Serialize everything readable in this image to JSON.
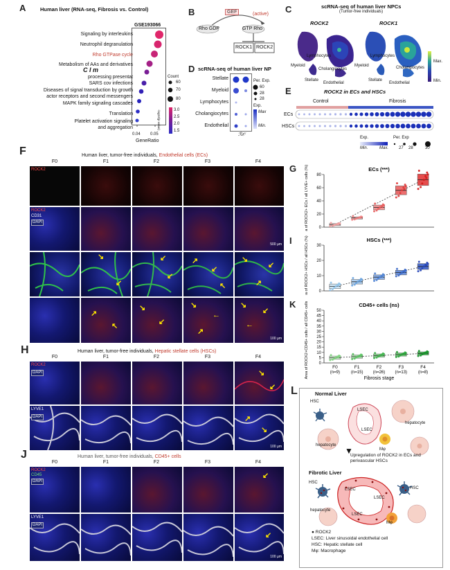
{
  "panel_labels": {
    "A": "A",
    "B": "B",
    "C": "C",
    "D": "D",
    "E": "E",
    "F": "F",
    "G": "G",
    "H": "H",
    "I": "I",
    "J": "J",
    "K": "K",
    "L": "L"
  },
  "panelA": {
    "title": "Human liver (RNA-seq, Fibrosis vs. Control)",
    "dataset": "GSE193066",
    "xlabel": "GeneRatio",
    "xticks": [
      "0.04",
      "0.05"
    ],
    "count_legend_title": "Count",
    "count_legend": [
      "60",
      "70",
      "80"
    ],
    "color_legend_title": "-log10(p value)",
    "color_legend": [
      "3.0",
      "2.5",
      "2.0",
      "1.5"
    ],
    "cim_label": "C I m",
    "terms": [
      "Signaling by interleukins",
      "Neutrophil degranulation",
      "Rho GTPase cycle",
      "Metabolism of AAs and derivatives",
      "processing presentat",
      "SARS cov infections",
      "Diseases of signal transduction by growth",
      "actor receptors and second messengers",
      "MAPK family signaling cascades",
      "Translation",
      "Platelet activation signaling",
      "and aggregation"
    ]
  },
  "panelB": {
    "gef": "GEF",
    "active": "(active)",
    "rhogdp": "Rho GDP",
    "gtprho": "GTP Rho",
    "rock1": "ROCK1",
    "rock2": "ROCK2"
  },
  "panelC": {
    "title": "scRNA-seq of human liver NPCs",
    "subtitle": "(Tumor-free individuals)",
    "left_gene": "ROCK2",
    "right_gene": "ROCK1",
    "labels": [
      "Myeloid",
      "Lymphocytes",
      "Cholangiocytes",
      "Stellate",
      "Endothelial"
    ],
    "scale_max": "Max.",
    "scale_min": "Min."
  },
  "panelD": {
    "title": "scRNA-seq of human liver NP",
    "rows": [
      "Stellate",
      "Myeloid",
      "Lymphocytes",
      "Cholangiocytes",
      "Endothelial"
    ],
    "pct_title": "Per. Exp.",
    "pct": [
      "60",
      "28",
      "28"
    ],
    "exp_title": "Exp.",
    "exp_max": "Max",
    "exp_min": "Min."
  },
  "panelE": {
    "title": "ROCK2 in ECs and HSCs",
    "control": "Control",
    "fibrosis": "Fibrosis",
    "rows": [
      "ECs",
      "HSCs"
    ],
    "exp": "Exp.",
    "per_exp": "Per. Exp",
    "min": "Min.",
    "max": "Max.",
    "sizes": [
      "27",
      "28",
      "30"
    ]
  },
  "panelF": {
    "title_prefix": "Human liver, tumor-free individuals, ",
    "title_highlight": "Endothelial cells (ECs)",
    "stages": [
      "F0",
      "F1",
      "F2",
      "F3",
      "F4"
    ],
    "rock2": "ROCK2",
    "cd31": "CD31",
    "dapi": "DAPI",
    "scale_top": "500 µm",
    "scale_bottom": "100 µm"
  },
  "panelH": {
    "title_prefix": "Human liver, tumor-free individuals, ",
    "title_highlight": "Hepatic stellate cells (HSCs)",
    "stages": [
      "F0",
      "F1",
      "F2",
      "F3",
      "F4"
    ],
    "rock2": "ROCK2",
    "dapi": "DAPI",
    "lyve1": "LYVE1",
    "scale": "100 µm"
  },
  "panelJ": {
    "title_prefix": "Human liver, tumor-free individuals, ",
    "title_highlight": "CD45+ cells",
    "stages": [
      "F0",
      "F1",
      "F2",
      "F3",
      "F4"
    ],
    "rock2": "ROCK2",
    "cd45": "CD45",
    "dapi": "DAPI",
    "lyve1": "LYVE1",
    "scale": "100 µm"
  },
  "chart_data": [
    {
      "type": "scatter",
      "panel": "G",
      "title": "ECs (***)",
      "ylabel": "Area of ROCK2+ ECs / all LYVE+ cells (%)",
      "ylim": [
        0,
        80
      ],
      "yticks": [
        0,
        20,
        40,
        60,
        80
      ],
      "categories": [
        "F0",
        "F1",
        "F2",
        "F3",
        "F4"
      ],
      "medians": [
        4,
        14,
        30,
        56,
        72
      ],
      "color": "#e0221c"
    },
    {
      "type": "scatter",
      "panel": "I",
      "title": "HSCs (***)",
      "ylabel": "Area of ROCK2+ HSCs / all HSCs (%)",
      "ylim": [
        0,
        30
      ],
      "yticks": [
        0,
        10,
        20,
        30
      ],
      "categories": [
        "F0",
        "F1",
        "F2",
        "F3",
        "F4"
      ],
      "medians": [
        3,
        6,
        9,
        12,
        16
      ],
      "color": "#2a44c8"
    },
    {
      "type": "scatter",
      "panel": "K",
      "title": "CD45+ cells (ns)",
      "ylabel": "Area of ROCK2+CD45+ cells / all CD45+ cells (%)",
      "ylim": [
        0,
        50
      ],
      "yticks": [
        0,
        5,
        10,
        15,
        20,
        25,
        30,
        35,
        40,
        45,
        50
      ],
      "categories": [
        "F0\n(n=9)",
        "F1\n(n=15)",
        "F2\n(n=26)",
        "F3\n(n=13)",
        "F4\n(n=8)"
      ],
      "xticklabels": [
        "F0",
        "F1",
        "F2",
        "F3",
        "F4"
      ],
      "ns": [
        "(n=9)",
        "(n=15)",
        "(n=26)",
        "(n=13)",
        "(n=8)"
      ],
      "medians": [
        5,
        6,
        7,
        8,
        9
      ],
      "xlabel": "Fibrosis stage",
      "color": "#1ea838"
    }
  ],
  "panelL": {
    "normal": "Normal Liver",
    "fibrotic": "Fibrotic Liver",
    "hsc": "HSC",
    "lsec": "LSEC",
    "hepatocyte": "hepatocyte",
    "mphi": "Mφ",
    "upregulation": "Upregulation of ROCK2 in ECs and  perivascular HSCs",
    "legend_rock2": "ROCK2",
    "legend_lsec": "LSEC: Liver sinusoidal endothelial cell",
    "legend_hsc": "HSC: Hepatic stellate cell",
    "legend_mphi": "Mφ: Macrophage"
  }
}
